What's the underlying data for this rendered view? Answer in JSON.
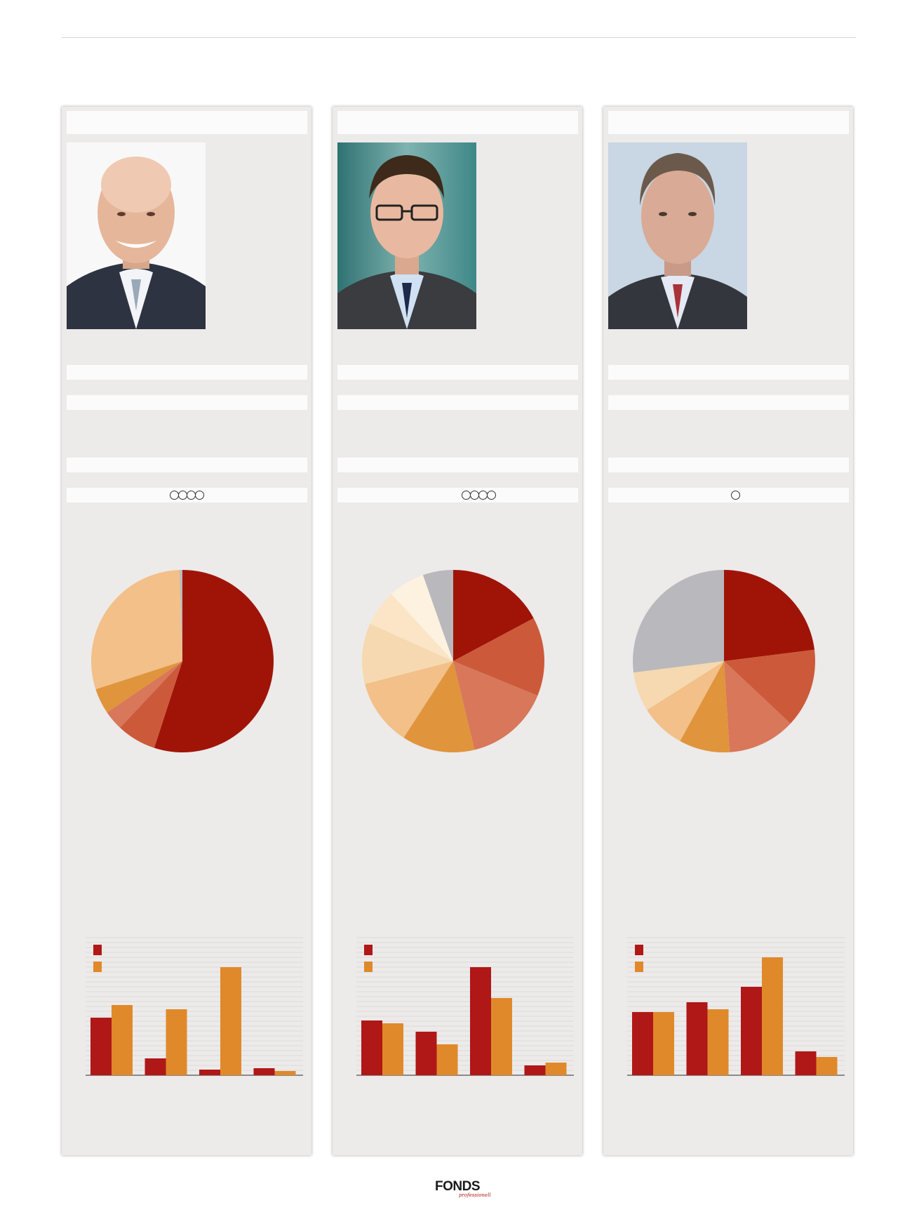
{
  "colors": {
    "red_dark": "#a01408",
    "orange_red": "#cc5a3a",
    "salmon": "#d8775a",
    "orange": "#e0943c",
    "peach": "#f2c088",
    "light_peach": "#f6d9b0",
    "cream": "#fbeed8",
    "very_light": "#fdf6e8",
    "grey": "#b9b9bd",
    "bar_red": "#b01717",
    "bar_orange": "#e0892a"
  },
  "panels": [
    {
      "rating_count": 4,
      "photo": "portrait-bald-smiling-man",
      "pie": [
        {
          "value": 55,
          "color": "#a01408"
        },
        {
          "value": 7,
          "color": "#cc5a3a"
        },
        {
          "value": 3.5,
          "color": "#d8775a"
        },
        {
          "value": 4.5,
          "color": "#e0943c"
        },
        {
          "value": 29.5,
          "color": "#f2c088"
        },
        {
          "value": 0.5,
          "color": "#b9b9bd"
        }
      ],
      "bars": {
        "groups": [
          {
            "a": 41,
            "b": 50
          },
          {
            "a": 12,
            "b": 47
          },
          {
            "a": 4,
            "b": 77
          },
          {
            "a": 5,
            "b": 3
          }
        ],
        "ymax": 100
      }
    },
    {
      "rating_count": 4,
      "photo": "portrait-man-with-glasses",
      "pie": [
        {
          "value": 16,
          "color": "#a01408"
        },
        {
          "value": 13,
          "color": "#cc5a3a"
        },
        {
          "value": 14,
          "color": "#d8775a"
        },
        {
          "value": 12,
          "color": "#e0943c"
        },
        {
          "value": 11,
          "color": "#f2c088"
        },
        {
          "value": 10,
          "color": "#f6d9b0"
        },
        {
          "value": 6,
          "color": "#fbe5c6"
        },
        {
          "value": 6,
          "color": "#fdf2e0"
        },
        {
          "value": 5,
          "color": "#b9b9bd"
        }
      ],
      "bars": {
        "groups": [
          {
            "a": 39,
            "b": 37
          },
          {
            "a": 31,
            "b": 22
          },
          {
            "a": 77,
            "b": 55
          },
          {
            "a": 7,
            "b": 9
          }
        ],
        "ymax": 100
      }
    },
    {
      "rating_count": 1,
      "photo": "portrait-grey-haired-man",
      "pie": [
        {
          "value": 23,
          "color": "#a01408"
        },
        {
          "value": 14,
          "color": "#cc5a3a"
        },
        {
          "value": 12,
          "color": "#d8775a"
        },
        {
          "value": 9,
          "color": "#e0943c"
        },
        {
          "value": 8,
          "color": "#f2c088"
        },
        {
          "value": 7,
          "color": "#f6d9b0"
        },
        {
          "value": 27,
          "color": "#b9b9bd"
        }
      ],
      "bars": {
        "groups": [
          {
            "a": 45,
            "b": 45
          },
          {
            "a": 52,
            "b": 47
          },
          {
            "a": 63,
            "b": 84
          },
          {
            "a": 17,
            "b": 13
          }
        ],
        "ymax": 100
      }
    }
  ],
  "footer": {
    "logo": "FONDS",
    "logo_sub": "professionell"
  }
}
